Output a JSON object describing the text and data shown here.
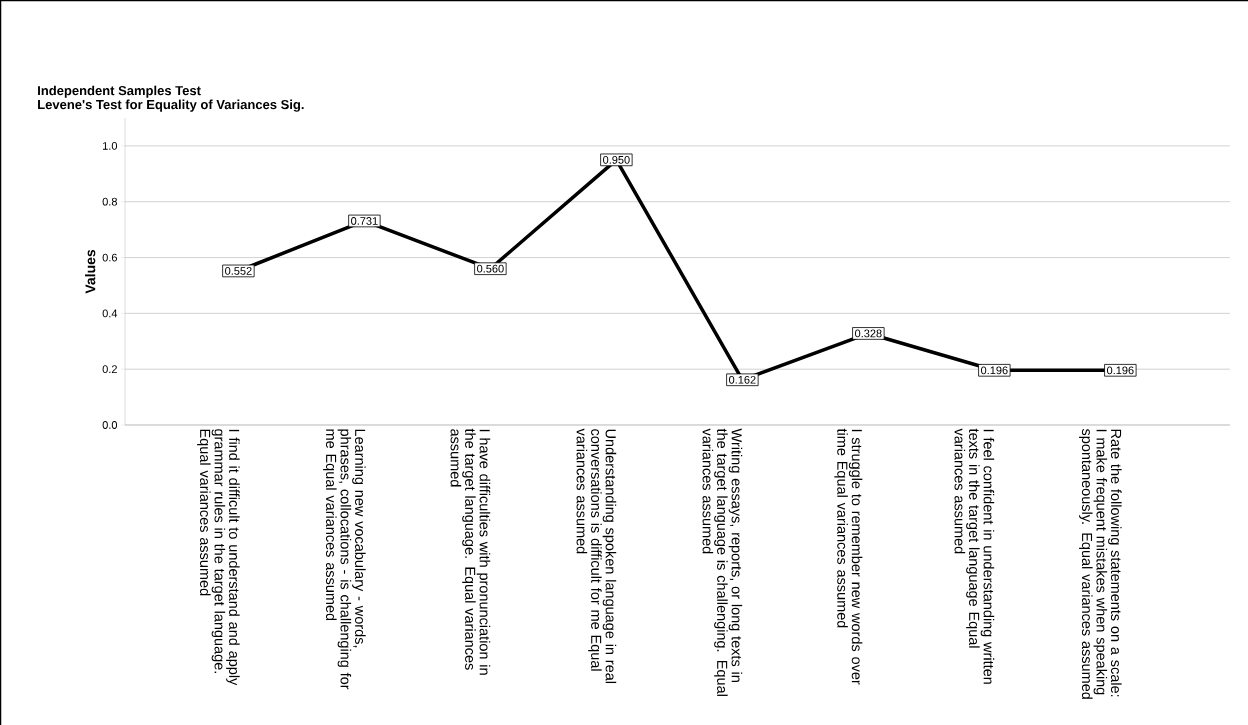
{
  "chart_data": {
    "type": "line",
    "title": "Independent Samples Test",
    "subtitle": "Levene's Test for Equality of Variances Sig.",
    "ylabel": "Values",
    "categories": [
      "I find it difficult to understand and apply grammar rules in the target language. Equal variances assumed",
      "Learning new vocabulary - words, phrases, collocations - is challenging for me Equal variances assumed",
      "I have difficulties with pronunciation in the target language. Equal variances assumed",
      "Understanding spoken language in real conversations is difficult for me Equal variances assumed",
      "Writing essays, reports, or long texts in the target language is challenging. Equal variances assumed",
      "I struggle to remember new words over time Equal variances assumed",
      "I feel confident in understanding written texts in the target language Equal variances assumed",
      "Rate the following statements on a scale: I make frequent mistakes when speaking spontaneously. Equal variances assumed"
    ],
    "values": [
      0.552,
      0.731,
      0.56,
      0.95,
      0.162,
      0.328,
      0.196,
      0.196
    ],
    "value_labels": [
      "0.552",
      "0.731",
      "0.560",
      "0.950",
      "0.162",
      "0.328",
      "0.196",
      "0.196"
    ],
    "color": "#000000",
    "marker": "square",
    "ylim": [
      0,
      1.1
    ],
    "yticks": [
      {
        "value": 0,
        "label": "0.0"
      },
      0.2,
      0.4,
      0.6,
      0.8,
      {
        "value": 1.0,
        "label": "1.0"
      }
    ],
    "grid": "y"
  }
}
